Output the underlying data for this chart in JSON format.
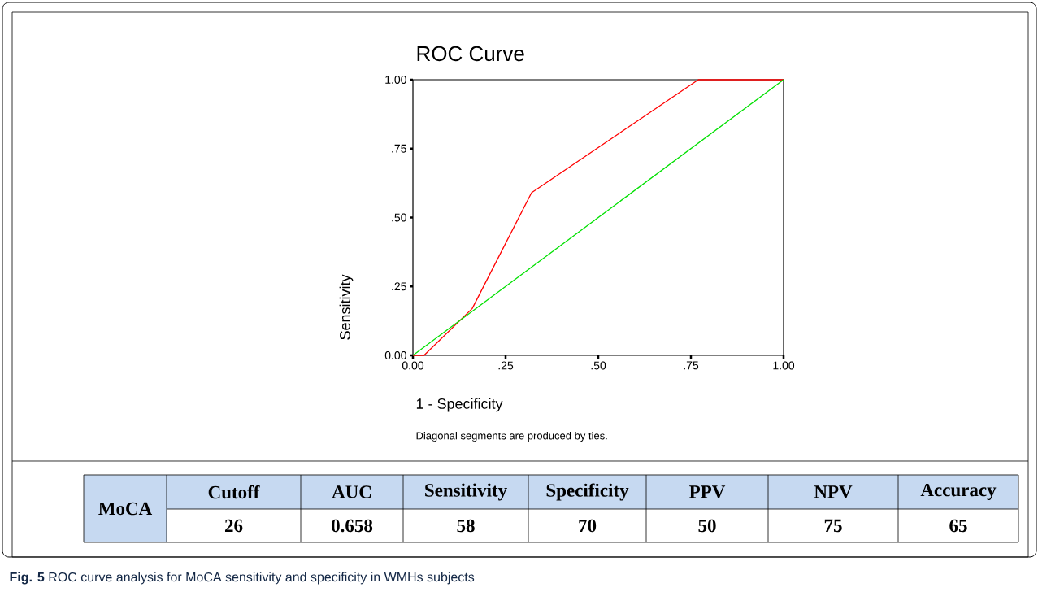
{
  "chart_data": {
    "type": "line",
    "title": "ROC Curve",
    "xlabel": "1 - Specificity",
    "ylabel": "Sensitivity",
    "xlim": [
      0,
      1
    ],
    "ylim": [
      0,
      1
    ],
    "xticks": [
      {
        "value": 0,
        "label": "0.00"
      },
      {
        "value": 0.25,
        "label": ".25"
      },
      {
        "value": 0.5,
        "label": ".50"
      },
      {
        "value": 0.75,
        "label": ".75"
      },
      {
        "value": 1,
        "label": "1.00"
      }
    ],
    "yticks": [
      {
        "value": 0,
        "label": "0.00"
      },
      {
        "value": 0.25,
        "label": ".25"
      },
      {
        "value": 0.5,
        "label": ".50"
      },
      {
        "value": 0.75,
        "label": ".75"
      },
      {
        "value": 1,
        "label": "1.00"
      }
    ],
    "grid": false,
    "marker": "none",
    "line_style": "solid",
    "series": [
      {
        "color": "#ff0000",
        "x": [
          0,
          0.03,
          0.16,
          0.32,
          0.77,
          1
        ],
        "values": [
          0,
          0,
          0.17,
          0.59,
          1,
          1
        ]
      },
      {
        "color": "#00e000",
        "x": [
          0,
          1
        ],
        "values": [
          0,
          1
        ]
      }
    ],
    "annotations": [
      "Diagonal segments are produced by ties.",
      "MoCA",
      "Cutoff",
      "AUC",
      "Sensitivity",
      "Specificity",
      "PPV",
      "NPV",
      "Accuracy",
      "26",
      "0.658",
      "58",
      "70",
      "50",
      "75",
      "65",
      "**Fig. 5** ROC curve analysis for MoCA sensitivity and specificity in WMHs subjects"
    ]
  }
}
